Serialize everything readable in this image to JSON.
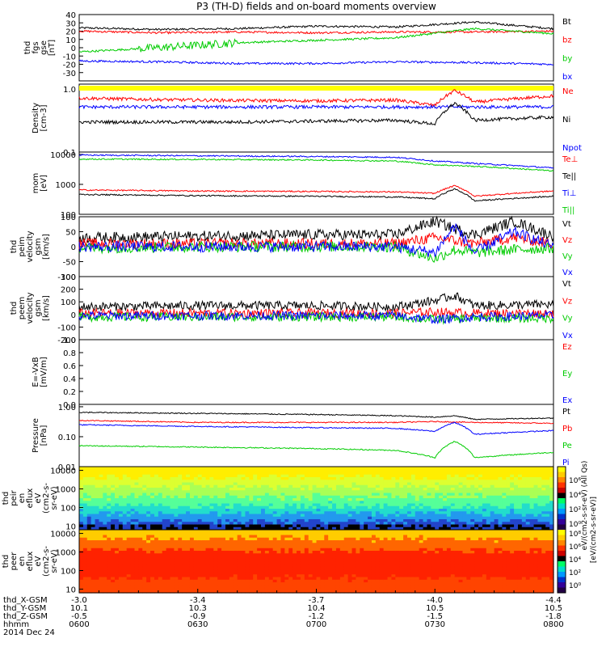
{
  "title": "P3 (TH-D) fields and on-board moments overview",
  "date_label": "2014 Dec 24",
  "colors": {
    "black": "#000000",
    "red": "#ff0000",
    "green": "#00cc00",
    "blue": "#0000ff",
    "yellow": "#ffff00"
  },
  "chart_data": [
    {
      "type": "line",
      "id": "fgs",
      "ylabel": [
        "thd",
        "fgs",
        "gse",
        "[nT]"
      ],
      "ylim": [
        -40,
        40
      ],
      "yticks": [
        "-30",
        "-20",
        "-10",
        "0",
        "10",
        "20",
        "30",
        "40"
      ],
      "legend": [
        {
          "name": "Bt",
          "color": "#000000"
        },
        {
          "name": "bz",
          "color": "#ff0000"
        },
        {
          "name": "by",
          "color": "#00cc00"
        },
        {
          "name": "bx",
          "color": "#0000ff"
        }
      ],
      "series": [
        {
          "name": "Bt",
          "color": "#000000",
          "x": [
            0,
            20,
            40,
            60,
            80,
            100,
            120
          ],
          "y": [
            24,
            22,
            23,
            26,
            25,
            31,
            23
          ]
        },
        {
          "name": "bz",
          "color": "#ff0000",
          "x": [
            0,
            20,
            40,
            60,
            80,
            100,
            120
          ],
          "y": [
            20,
            18,
            19,
            18,
            19,
            19,
            20
          ]
        },
        {
          "name": "by",
          "color": "#00cc00",
          "x": [
            0,
            20,
            40,
            60,
            80,
            100,
            120
          ],
          "y": [
            -5,
            0,
            6,
            9,
            12,
            23,
            17
          ]
        },
        {
          "name": "bx",
          "color": "#0000ff",
          "x": [
            0,
            20,
            40,
            60,
            80,
            100,
            120
          ],
          "y": [
            -16,
            -17,
            -19,
            -19,
            -17,
            -18,
            -20
          ]
        }
      ]
    },
    {
      "type": "line",
      "id": "density",
      "log": true,
      "ylabel": [
        "Density",
        "[cm-3]"
      ],
      "ylim": [
        0.1,
        1.2
      ],
      "yticks": [
        "0.1",
        "1.0"
      ],
      "legend": [
        {
          "name": "Ne",
          "color": "#ff0000"
        },
        {
          "name": "Ni",
          "color": "#000000"
        },
        {
          "name": "Npot",
          "color": "#0000ff"
        }
      ],
      "series": [
        {
          "name": "Ne",
          "color": "#ff0000",
          "x": [
            0,
            20,
            40,
            60,
            80,
            90,
            95,
            100,
            120
          ],
          "y": [
            0.72,
            0.68,
            0.66,
            0.65,
            0.67,
            0.55,
            0.95,
            0.62,
            0.78
          ]
        },
        {
          "name": "Npot",
          "color": "#0000ff",
          "x": [
            0,
            40,
            60,
            80,
            100,
            120
          ],
          "y": [
            0.52,
            0.52,
            0.52,
            0.52,
            0.52,
            0.52
          ]
        },
        {
          "name": "Ni",
          "color": "#000000",
          "x": [
            0,
            20,
            40,
            60,
            80,
            90,
            95,
            100,
            120
          ],
          "y": [
            0.3,
            0.3,
            0.3,
            0.31,
            0.32,
            0.28,
            0.6,
            0.32,
            0.36
          ]
        }
      ]
    },
    {
      "type": "line",
      "id": "temp",
      "log": true,
      "ylabel": [
        "mom",
        "[eV]"
      ],
      "ylim": [
        100,
        12000
      ],
      "yticks": [
        "100",
        "1000",
        "10000"
      ],
      "legend": [
        {
          "name": "Te⊥",
          "color": "#ff0000"
        },
        {
          "name": "Te||",
          "color": "#000000"
        },
        {
          "name": "Ti⊥",
          "color": "#0000ff"
        },
        {
          "name": "Ti||",
          "color": "#00cc00"
        }
      ],
      "series": [
        {
          "name": "Te⊥",
          "color": "#0000ff",
          "x": [
            0,
            30,
            60,
            80,
            90,
            100,
            120
          ],
          "y": [
            9500,
            9000,
            8500,
            8000,
            6000,
            5000,
            3500
          ]
        },
        {
          "name": "Ti||",
          "color": "#00cc00",
          "x": [
            0,
            30,
            60,
            80,
            90,
            100,
            120
          ],
          "y": [
            7000,
            6800,
            6500,
            6000,
            4500,
            4000,
            2800
          ]
        },
        {
          "name": "Ti⊥",
          "color": "#ff0000",
          "x": [
            0,
            30,
            60,
            80,
            90,
            95,
            100,
            120
          ],
          "y": [
            650,
            600,
            580,
            560,
            500,
            900,
            400,
            600
          ]
        },
        {
          "name": "Te||",
          "color": "#000000",
          "x": [
            0,
            30,
            60,
            80,
            90,
            95,
            100,
            120
          ],
          "y": [
            460,
            420,
            400,
            380,
            330,
            700,
            280,
            400
          ]
        }
      ]
    },
    {
      "type": "line",
      "id": "peim",
      "ylabel": [
        "thd",
        "peim",
        "velocity",
        "gsm",
        "[km/s]"
      ],
      "ylim": [
        -100,
        100
      ],
      "yticks": [
        "-100",
        "-50",
        "0",
        "50",
        "100"
      ],
      "legend": [
        {
          "name": "Vt",
          "color": "#000000"
        },
        {
          "name": "Vz",
          "color": "#ff0000"
        },
        {
          "name": "Vy",
          "color": "#00cc00"
        },
        {
          "name": "Vx",
          "color": "#0000ff"
        }
      ],
      "series": [
        {
          "name": "Vt",
          "color": "#000000",
          "x": [
            0,
            30,
            60,
            80,
            90,
            95,
            100,
            110,
            120
          ],
          "y": [
            30,
            35,
            40,
            40,
            85,
            60,
            40,
            85,
            35
          ]
        },
        {
          "name": "Vz",
          "color": "#ff0000",
          "x": [
            0,
            30,
            60,
            80,
            90,
            95,
            100,
            110,
            120
          ],
          "y": [
            10,
            10,
            10,
            10,
            30,
            20,
            10,
            30,
            10
          ]
        },
        {
          "name": "Vy",
          "color": "#00cc00",
          "x": [
            0,
            30,
            60,
            80,
            90,
            95,
            100,
            110,
            120
          ],
          "y": [
            -5,
            0,
            0,
            0,
            -40,
            -10,
            -20,
            -10,
            -5
          ]
        },
        {
          "name": "Vx",
          "color": "#0000ff",
          "x": [
            0,
            30,
            60,
            80,
            90,
            95,
            100,
            110,
            120
          ],
          "y": [
            0,
            0,
            0,
            0,
            -20,
            70,
            -20,
            50,
            0
          ]
        }
      ]
    },
    {
      "type": "line",
      "id": "peem",
      "ylabel": [
        "thd",
        "peem",
        "velocity",
        "gsm",
        "[km/s]"
      ],
      "ylim": [
        -200,
        300
      ],
      "yticks": [
        "-200",
        "-100",
        "0",
        "100",
        "200",
        "300"
      ],
      "legend": [
        {
          "name": "Vt",
          "color": "#000000"
        },
        {
          "name": "Vz",
          "color": "#ff0000"
        },
        {
          "name": "Vy",
          "color": "#00cc00"
        },
        {
          "name": "Vx",
          "color": "#0000ff"
        }
      ],
      "series": [
        {
          "name": "Vt",
          "color": "#000000",
          "x": [
            0,
            30,
            60,
            80,
            90,
            95,
            100,
            120
          ],
          "y": [
            60,
            70,
            70,
            60,
            110,
            150,
            70,
            80
          ]
        },
        {
          "name": "Vz",
          "color": "#ff0000",
          "x": [
            0,
            30,
            60,
            80,
            90,
            100,
            120
          ],
          "y": [
            10,
            10,
            10,
            10,
            20,
            10,
            10
          ]
        },
        {
          "name": "Vy",
          "color": "#00cc00",
          "x": [
            0,
            30,
            60,
            80,
            90,
            100,
            120
          ],
          "y": [
            -20,
            -20,
            -20,
            -20,
            -40,
            -30,
            -30
          ]
        },
        {
          "name": "Vx",
          "color": "#0000ff",
          "x": [
            0,
            30,
            60,
            80,
            90,
            100,
            120
          ],
          "y": [
            -10,
            -10,
            -10,
            -10,
            -40,
            -20,
            -10
          ]
        }
      ]
    },
    {
      "type": "line",
      "id": "efield",
      "ylabel": [
        "E=-VxB",
        "[mV/m]"
      ],
      "ylim": [
        0,
        1.0
      ],
      "yticks": [
        "0.0",
        "0.2",
        "0.4",
        "0.6",
        "0.8",
        "1.0"
      ],
      "legend": [
        {
          "name": "Ez",
          "color": "#ff0000"
        },
        {
          "name": "Ey",
          "color": "#00cc00"
        },
        {
          "name": "Ex",
          "color": "#0000ff"
        }
      ],
      "series": []
    },
    {
      "type": "line",
      "id": "pressure",
      "log": true,
      "ylabel": [
        "Pressure",
        "[nPa]"
      ],
      "ylim": [
        0.01,
        1.2
      ],
      "yticks": [
        "0.01",
        "0.10",
        "1.00"
      ],
      "legend": [
        {
          "name": "Pt",
          "color": "#000000"
        },
        {
          "name": "Pb",
          "color": "#ff0000"
        },
        {
          "name": "Pe",
          "color": "#00cc00"
        },
        {
          "name": "Pi",
          "color": "#0000ff"
        }
      ],
      "series": [
        {
          "name": "Pt",
          "color": "#000000",
          "x": [
            0,
            30,
            60,
            80,
            90,
            95,
            100,
            120
          ],
          "y": [
            0.65,
            0.6,
            0.55,
            0.5,
            0.45,
            0.5,
            0.38,
            0.42
          ]
        },
        {
          "name": "Pb",
          "color": "#ff0000",
          "x": [
            0,
            30,
            60,
            80,
            90,
            100,
            120
          ],
          "y": [
            0.35,
            0.3,
            0.3,
            0.3,
            0.32,
            0.3,
            0.28
          ]
        },
        {
          "name": "Pi",
          "color": "#0000ff",
          "x": [
            0,
            30,
            60,
            80,
            90,
            95,
            100,
            120
          ],
          "y": [
            0.25,
            0.22,
            0.2,
            0.19,
            0.15,
            0.3,
            0.12,
            0.16
          ]
        },
        {
          "name": "Pe",
          "color": "#00cc00",
          "x": [
            0,
            30,
            60,
            80,
            90,
            95,
            100,
            120
          ],
          "y": [
            0.05,
            0.045,
            0.04,
            0.035,
            0.02,
            0.07,
            0.02,
            0.03
          ]
        }
      ]
    },
    {
      "type": "heatmap",
      "id": "peir",
      "ylabel": [
        "thd",
        "peir",
        "en",
        "eflux",
        "eV",
        "(cm2-s-",
        "sr-eV)"
      ],
      "yticks": [
        "10",
        "100",
        "1000",
        "10000"
      ]
    },
    {
      "type": "heatmap",
      "id": "peer",
      "ylabel": [
        "thd",
        "peer",
        "en",
        "eflux",
        "eV",
        "(cm2-s-",
        "sr-eV)"
      ],
      "yticks": [
        "10",
        "100",
        "1000",
        "10000"
      ]
    }
  ],
  "colorbar": {
    "label": "[eV/(cm2-s-sr-eV)]",
    "label2": "eV/(cm2-s-sr-eV) (All Qs)",
    "ticks_top": [
      "10⁶",
      "10⁴",
      "10²",
      "10⁰"
    ],
    "ticks_bottom": [
      "10⁸",
      "10⁶",
      "10⁴",
      "10²",
      "10⁰"
    ]
  },
  "xaxis": {
    "rows": [
      {
        "label": "thd_X-GSM",
        "values": [
          "-3.0",
          "-3.4",
          "-3.7",
          "-4.0",
          "-4.4"
        ]
      },
      {
        "label": "thd_Y-GSM",
        "values": [
          "10.1",
          "10.3",
          "10.4",
          "10.5",
          "10.5"
        ]
      },
      {
        "label": "thd_Z-GSM",
        "values": [
          "-0.5",
          "-0.9",
          "-1.2",
          "-1.5",
          "-1.8"
        ]
      },
      {
        "label": "hhmm",
        "values": [
          "0600",
          "0630",
          "0700",
          "0730",
          "0800"
        ]
      }
    ]
  }
}
